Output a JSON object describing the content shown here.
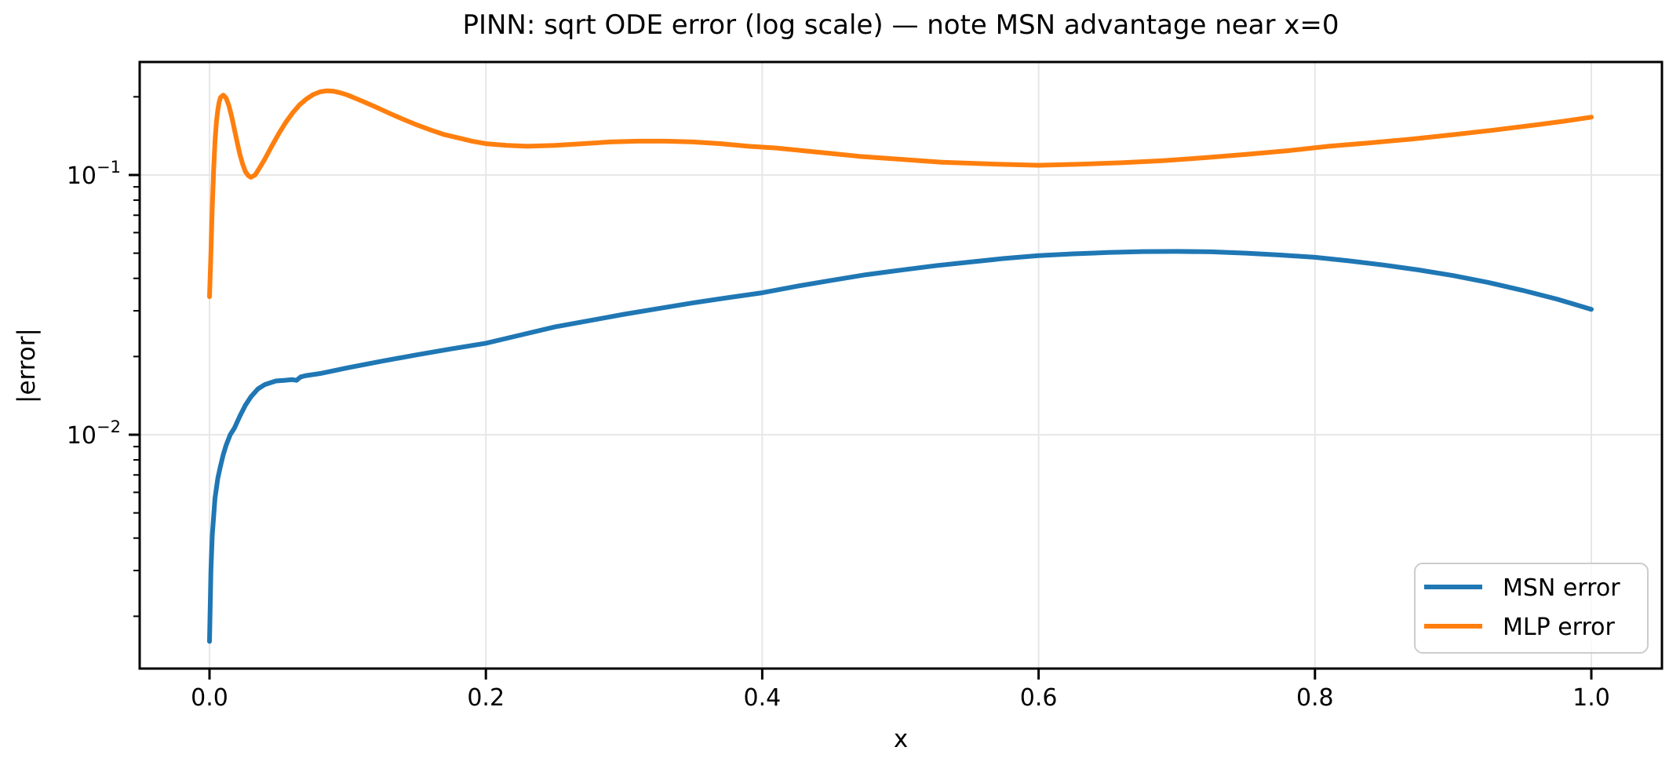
{
  "chart_data": {
    "type": "line",
    "title": "PINN: sqrt ODE error (log scale) — note MSN advantage near x=0",
    "xlabel": "x",
    "ylabel": "|error|",
    "x_scale": "linear",
    "y_scale": "log",
    "xlim": [
      -0.0505,
      1.0505
    ],
    "ylim": [
      0.00126,
      0.272
    ],
    "grid": true,
    "grid_color": "#e7e7e7",
    "spine_color": "#000000",
    "x_ticks": [
      {
        "value": 0.0,
        "label": "0.0"
      },
      {
        "value": 0.2,
        "label": "0.2"
      },
      {
        "value": 0.4,
        "label": "0.4"
      },
      {
        "value": 0.6,
        "label": "0.6"
      },
      {
        "value": 0.8,
        "label": "0.8"
      },
      {
        "value": 1.0,
        "label": "1.0"
      }
    ],
    "y_ticks": [
      {
        "value": 0.1,
        "base": "10",
        "exp": "−1"
      },
      {
        "value": 0.01,
        "base": "10",
        "exp": "−2"
      }
    ],
    "y_minor_ticks": [
      0.002,
      0.003,
      0.004,
      0.005,
      0.006,
      0.007,
      0.008,
      0.009,
      0.02,
      0.03,
      0.04,
      0.05,
      0.06,
      0.07,
      0.08,
      0.09,
      0.2
    ],
    "legend": {
      "position": "lower right",
      "border_color": "#cccccc",
      "background": "#ffffff",
      "entries": [
        "MSN error",
        "MLP error"
      ]
    },
    "series": [
      {
        "name": "MSN error",
        "color": "#1f77b4",
        "points": [
          [
            0.0,
            0.0016
          ],
          [
            0.001,
            0.003
          ],
          [
            0.002,
            0.0041
          ],
          [
            0.004,
            0.0057
          ],
          [
            0.006,
            0.0068
          ],
          [
            0.008,
            0.0076
          ],
          [
            0.01,
            0.0084
          ],
          [
            0.012,
            0.0091
          ],
          [
            0.015,
            0.01
          ],
          [
            0.018,
            0.0106
          ],
          [
            0.022,
            0.0118
          ],
          [
            0.026,
            0.013
          ],
          [
            0.03,
            0.014
          ],
          [
            0.035,
            0.015
          ],
          [
            0.04,
            0.0156
          ],
          [
            0.048,
            0.0161
          ],
          [
            0.054,
            0.0162
          ],
          [
            0.06,
            0.0163
          ],
          [
            0.063,
            0.0162
          ],
          [
            0.066,
            0.0167
          ],
          [
            0.07,
            0.0169
          ],
          [
            0.08,
            0.0172
          ],
          [
            0.1,
            0.0181
          ],
          [
            0.125,
            0.0192
          ],
          [
            0.15,
            0.0203
          ],
          [
            0.175,
            0.0214
          ],
          [
            0.2,
            0.0225
          ],
          [
            0.225,
            0.0242
          ],
          [
            0.25,
            0.026
          ],
          [
            0.275,
            0.0275
          ],
          [
            0.3,
            0.0291
          ],
          [
            0.325,
            0.0306
          ],
          [
            0.35,
            0.0322
          ],
          [
            0.375,
            0.0337
          ],
          [
            0.4,
            0.0352
          ],
          [
            0.425,
            0.0373
          ],
          [
            0.45,
            0.0393
          ],
          [
            0.475,
            0.0413
          ],
          [
            0.5,
            0.043
          ],
          [
            0.525,
            0.0447
          ],
          [
            0.55,
            0.0462
          ],
          [
            0.575,
            0.0477
          ],
          [
            0.6,
            0.0489
          ],
          [
            0.625,
            0.0497
          ],
          [
            0.65,
            0.0503
          ],
          [
            0.675,
            0.0507
          ],
          [
            0.7,
            0.0508
          ],
          [
            0.725,
            0.0506
          ],
          [
            0.75,
            0.05
          ],
          [
            0.775,
            0.0492
          ],
          [
            0.8,
            0.0482
          ],
          [
            0.825,
            0.0467
          ],
          [
            0.85,
            0.045
          ],
          [
            0.875,
            0.0431
          ],
          [
            0.9,
            0.041
          ],
          [
            0.925,
            0.0386
          ],
          [
            0.95,
            0.036
          ],
          [
            0.975,
            0.0333
          ],
          [
            1.0,
            0.0304
          ]
        ]
      },
      {
        "name": "MLP error",
        "color": "#ff7f0e",
        "points": [
          [
            0.0,
            0.034
          ],
          [
            0.001,
            0.05
          ],
          [
            0.002,
            0.075
          ],
          [
            0.003,
            0.105
          ],
          [
            0.004,
            0.135
          ],
          [
            0.005,
            0.16
          ],
          [
            0.006,
            0.178
          ],
          [
            0.007,
            0.191
          ],
          [
            0.008,
            0.199
          ],
          [
            0.01,
            0.203
          ],
          [
            0.012,
            0.198
          ],
          [
            0.014,
            0.185
          ],
          [
            0.016,
            0.168
          ],
          [
            0.018,
            0.15
          ],
          [
            0.02,
            0.134
          ],
          [
            0.022,
            0.12
          ],
          [
            0.024,
            0.11
          ],
          [
            0.026,
            0.103
          ],
          [
            0.028,
            0.0995
          ],
          [
            0.03,
            0.098
          ],
          [
            0.033,
            0.1
          ],
          [
            0.036,
            0.106
          ],
          [
            0.04,
            0.115
          ],
          [
            0.045,
            0.129
          ],
          [
            0.05,
            0.144
          ],
          [
            0.055,
            0.159
          ],
          [
            0.06,
            0.173
          ],
          [
            0.065,
            0.186
          ],
          [
            0.07,
            0.196
          ],
          [
            0.075,
            0.204
          ],
          [
            0.08,
            0.209
          ],
          [
            0.085,
            0.211
          ],
          [
            0.09,
            0.21
          ],
          [
            0.095,
            0.207
          ],
          [
            0.1,
            0.203
          ],
          [
            0.11,
            0.193
          ],
          [
            0.12,
            0.183
          ],
          [
            0.13,
            0.173
          ],
          [
            0.14,
            0.164
          ],
          [
            0.15,
            0.156
          ],
          [
            0.16,
            0.149
          ],
          [
            0.17,
            0.143
          ],
          [
            0.18,
            0.139
          ],
          [
            0.19,
            0.135
          ],
          [
            0.2,
            0.132
          ],
          [
            0.215,
            0.13
          ],
          [
            0.23,
            0.129
          ],
          [
            0.25,
            0.13
          ],
          [
            0.27,
            0.132
          ],
          [
            0.29,
            0.134
          ],
          [
            0.31,
            0.135
          ],
          [
            0.33,
            0.135
          ],
          [
            0.35,
            0.134
          ],
          [
            0.37,
            0.132
          ],
          [
            0.39,
            0.129
          ],
          [
            0.41,
            0.127
          ],
          [
            0.43,
            0.124
          ],
          [
            0.45,
            0.121
          ],
          [
            0.47,
            0.118
          ],
          [
            0.49,
            0.116
          ],
          [
            0.51,
            0.114
          ],
          [
            0.53,
            0.112
          ],
          [
            0.55,
            0.111
          ],
          [
            0.57,
            0.11
          ],
          [
            0.6,
            0.109
          ],
          [
            0.63,
            0.11
          ],
          [
            0.66,
            0.1115
          ],
          [
            0.69,
            0.1135
          ],
          [
            0.72,
            0.1165
          ],
          [
            0.75,
            0.12
          ],
          [
            0.78,
            0.124
          ],
          [
            0.81,
            0.129
          ],
          [
            0.84,
            0.133
          ],
          [
            0.87,
            0.1375
          ],
          [
            0.9,
            0.143
          ],
          [
            0.93,
            0.149
          ],
          [
            0.96,
            0.156
          ],
          [
            0.98,
            0.161
          ],
          [
            1.0,
            0.167
          ]
        ]
      }
    ]
  }
}
